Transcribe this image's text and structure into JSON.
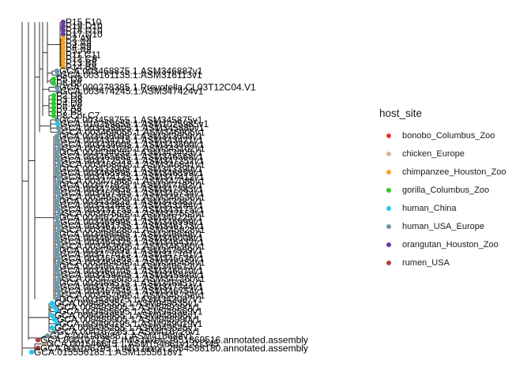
{
  "chart_data": {
    "type": "tree",
    "legend": {
      "title": "host_site",
      "position": "right",
      "entries": [
        {
          "label": "bonobo_Columbus_Zoo",
          "color": "#e8362f"
        },
        {
          "label": "chicken_Europe",
          "color": "#d9b99b"
        },
        {
          "label": "chimpanzee_Houston_Zoo",
          "color": "#f5a623"
        },
        {
          "label": "gorilla_Columbus_Zoo",
          "color": "#2ccc2c"
        },
        {
          "label": "human_China",
          "color": "#25c7f2"
        },
        {
          "label": "human_USA_Europe",
          "color": "#6d98a6"
        },
        {
          "label": "orangutan_Houston_Zoo",
          "color": "#6a3d9a"
        },
        {
          "label": "rumen_USA",
          "color": "#a8423b"
        }
      ]
    },
    "tips": [
      {
        "label": "P15.F10",
        "group": "orangutan_Houston_Zoo"
      },
      {
        "label": "P19.D10",
        "group": "orangutan_Houston_Zoo"
      },
      {
        "label": "P18.D10",
        "group": "orangutan_Houston_Zoo"
      },
      {
        "label": "P17.D10",
        "group": "orangutan_Houston_Zoo"
      },
      {
        "label": "P2.A9",
        "group": "chimpanzee_Houston_Zoo"
      },
      {
        "label": "P3.A9",
        "group": "chimpanzee_Houston_Zoo"
      },
      {
        "label": "P4.A9",
        "group": "chimpanzee_Houston_Zoo"
      },
      {
        "label": "P5.A8",
        "group": "chimpanzee_Houston_Zoo"
      },
      {
        "label": "P11.C11",
        "group": "chimpanzee_Houston_Zoo"
      },
      {
        "label": "P12.C8",
        "group": "chimpanzee_Houston_Zoo"
      },
      {
        "label": "P13.B8",
        "group": "chimpanzee_Houston_Zoo"
      },
      {
        "label": "P14.B8",
        "group": "chimpanzee_Houston_Zoo"
      },
      {
        "label": "GCA.003468875.1.ASM346887v1",
        "group": "human_USA_Europe"
      },
      {
        "label": "GCA.003161135.1.ASM316113v1",
        "group": "human_USA_Europe"
      },
      {
        "label": "P5.D8",
        "group": "gorilla_Columbus_Zoo"
      },
      {
        "label": "P5.B8",
        "group": "gorilla_Columbus_Zoo"
      },
      {
        "label": "GCA.000278385.1.Prevotella.CL03T12C04.V1",
        "group": "human_USA_Europe"
      },
      {
        "label": "GCA.003474245.1.ASM347424v1",
        "group": "human_USA_Europe"
      },
      {
        "label": "P2.D8",
        "group": "gorilla_Columbus_Zoo"
      },
      {
        "label": "P3.D8",
        "group": "gorilla_Columbus_Zoo"
      },
      {
        "label": "P4.D8",
        "group": "gorilla_Columbus_Zoo"
      },
      {
        "label": "P6.A8",
        "group": "gorilla_Columbus_Zoo"
      },
      {
        "label": "P7.B8",
        "group": "gorilla_Columbus_Zoo"
      },
      {
        "label": "P8.Cor.C7",
        "group": "gorilla_Columbus_Zoo"
      },
      {
        "label": "GCA.003458755.1.ASM345875v1",
        "group": "human_USA_Europe"
      },
      {
        "label": "GCA.010259855.1.ASM1025985v1",
        "group": "human_China"
      },
      {
        "label": "GCA.003458805.1.ASM345880v1",
        "group": "human_USA_Europe"
      },
      {
        "label": "GCA.003469055.1.ASM346905v1",
        "group": "human_USA_Europe"
      },
      {
        "label": "GCA.003436085.1.ASM343608v1",
        "group": "human_USA_Europe"
      },
      {
        "label": "GCA.003434215.1.ASM343421v1",
        "group": "human_USA_Europe"
      },
      {
        "label": "GCA.003436005.1.ASM343600v1",
        "group": "human_USA_Europe"
      },
      {
        "label": "GCA.003431025.1.ASM343102v1",
        "group": "human_USA_Europe"
      },
      {
        "label": "GCA.003434055.1.ASM343405v1",
        "group": "human_USA_Europe"
      },
      {
        "label": "GCA.003465685.1.ASM346568v1",
        "group": "human_USA_Europe"
      },
      {
        "label": "GCA.003472525.1.ASM347252v1",
        "group": "human_USA_Europe"
      },
      {
        "label": "GCA.003468415.1.ASM346841v1",
        "group": "human_USA_Europe"
      },
      {
        "label": "GCA.003433905.1.ASM343390v1",
        "group": "human_USA_Europe"
      },
      {
        "label": "GCA.003468995.1.ASM346899v1",
        "group": "human_USA_Europe"
      },
      {
        "label": "GCA.003474125.1.ASM347412v1",
        "group": "human_USA_Europe"
      },
      {
        "label": "GCA.003470865.1.ASM347086v1",
        "group": "human_USA_Europe"
      },
      {
        "label": "GCA.003471625.1.ASM347162v1",
        "group": "human_USA_Europe"
      },
      {
        "label": "GCA.003472835.1.ASM347283v1",
        "group": "human_USA_Europe"
      },
      {
        "label": "GCA.003467345.1.ASM346734v1",
        "group": "human_USA_Europe"
      },
      {
        "label": "GCA.003465365.1.ASM346536v1",
        "group": "human_USA_Europe"
      },
      {
        "label": "GCA.003433825.1.ASM343382v1",
        "group": "human_USA_Europe"
      },
      {
        "label": "GCA.003432845.1.ASM343284v1",
        "group": "human_USA_Europe"
      },
      {
        "label": "GCA.003431755.1.ASM343175v1",
        "group": "human_USA_Europe"
      },
      {
        "label": "GCA.003475535.1.ASM347553v1",
        "group": "human_USA_Europe"
      },
      {
        "label": "GCA.003462255.1.ASM346225v1",
        "group": "human_USA_Europe"
      },
      {
        "label": "GCA.003469995.1.ASM346999v1",
        "group": "human_USA_Europe"
      },
      {
        "label": "GCA.003461735.1.ASM346173v1",
        "group": "human_USA_Europe"
      },
      {
        "label": "GCA.003459285.1.ASM345928v1",
        "group": "human_USA_Europe"
      },
      {
        "label": "GCA.003466485.1.ASM346648v1",
        "group": "human_USA_Europe"
      },
      {
        "label": "GCA.003460085.1.ASM346008v1",
        "group": "human_USA_Europe"
      },
      {
        "label": "GCA.003464325.1.ASM346432v1",
        "group": "human_USA_Europe"
      },
      {
        "label": "GCA.003463605.1.ASM346360v1",
        "group": "human_USA_Europe"
      },
      {
        "label": "GCA.003475595.1.ASM347559v1",
        "group": "human_USA_Europe"
      },
      {
        "label": "GCA.003477015.1.ASM347701v1",
        "group": "human_USA_Europe"
      },
      {
        "label": "GCA.003466365.1.ASM346636v1",
        "group": "human_USA_Europe"
      },
      {
        "label": "GCA.003464545.1.ASM346454v1",
        "group": "human_USA_Europe"
      },
      {
        "label": "GCA.003466135.1.ASM346613v1",
        "group": "human_USA_Europe"
      },
      {
        "label": "GCA.003460705.1.ASM346070v1",
        "group": "human_USA_Europe"
      },
      {
        "label": "GCA.003459405.1.ASM345940v1",
        "group": "human_USA_Europe"
      },
      {
        "label": "GCA.003472605.1.ASM347260v1",
        "group": "human_USA_Europe"
      },
      {
        "label": "GCA.003469515.1.ASM346951v1",
        "group": "human_USA_Europe"
      },
      {
        "label": "GCA.003472445.1.ASM347244v1",
        "group": "human_USA_Europe"
      },
      {
        "label": "GCA.003467545.1.ASM346754v1",
        "group": "human_USA_Europe"
      },
      {
        "label": "GCA.003457585.1.ASM345758v1",
        "group": "human_USA_Europe"
      },
      {
        "label": "GCA.003430675.1.ASM343067v1",
        "group": "human_USA_Europe"
      },
      {
        "label": "GCA.009495355.1.ASM949535v1",
        "group": "human_China"
      },
      {
        "label": "GCA.009493905.1.ASM949390v1",
        "group": "human_China"
      },
      {
        "label": "GCA.009485695.1.ASM948569v1",
        "group": "human_China"
      },
      {
        "label": "GCA.009484955.1.ASM948495v1",
        "group": "human_China"
      },
      {
        "label": "GCA.009489905.1.ASM948990v1",
        "group": "human_China"
      },
      {
        "label": "GCA.009490195.1.ASM949019v1",
        "group": "human_China"
      },
      {
        "label": "GCA.009495255.1.ASM949525v1",
        "group": "human_China"
      },
      {
        "label": "GCA.004167265.1.ASM416726v1",
        "group": "human_USA_Europe"
      },
      {
        "label": "GCA.004166885.1.ASM416688v1",
        "group": "human_USA_Europe"
      },
      {
        "label": "GCA.900107125.1.IMG.taxon.2651869516.annotated.assembly",
        "group": "rumen_USA"
      },
      {
        "label": "GCA.001546615.1.ASM154661v1.01345",
        "group": "chicken_Europe"
      },
      {
        "label": "GCA.900106795.1.IMG.taxon.2654588180.annotated.assembly",
        "group": "rumen_USA"
      },
      {
        "label": "GCA.015556185.1.ASM1555618v1",
        "group": "human_China"
      }
    ]
  }
}
